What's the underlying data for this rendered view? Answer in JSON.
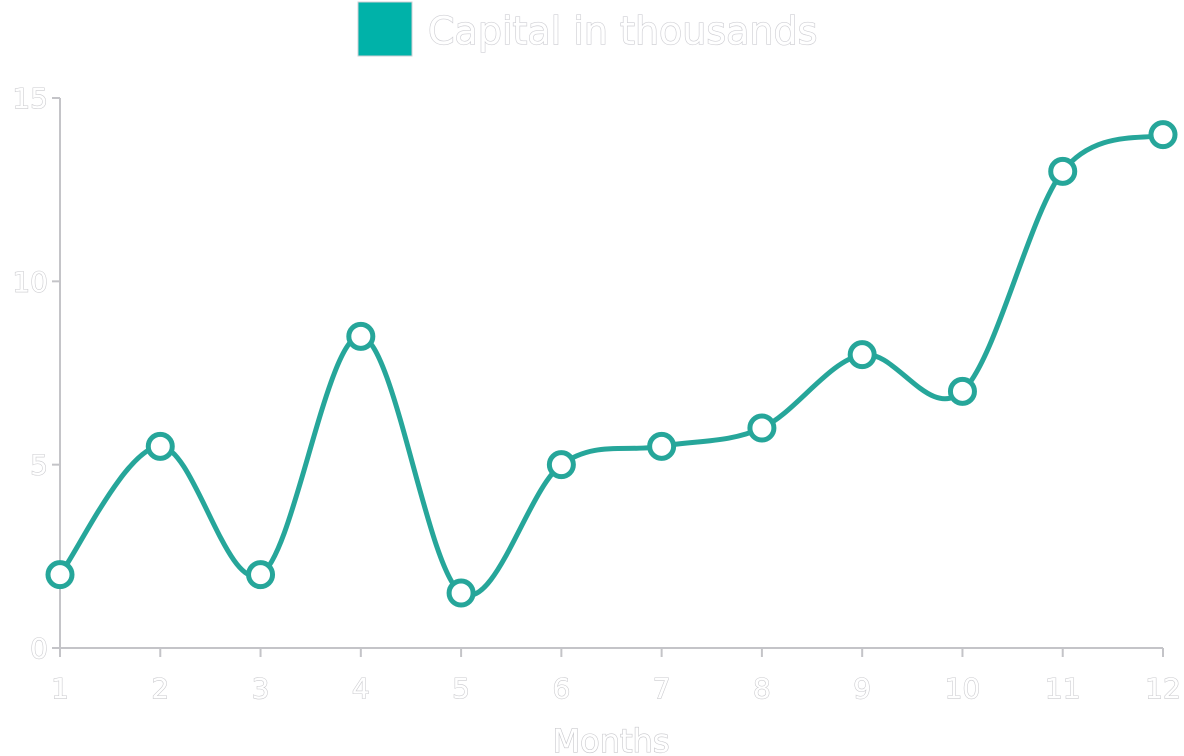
{
  "chart_data": {
    "type": "line",
    "x": [
      1,
      2,
      3,
      4,
      5,
      6,
      7,
      8,
      9,
      10,
      11,
      12
    ],
    "series": [
      {
        "name": "Capital in thousands",
        "values": [
          2,
          5.5,
          2,
          8.5,
          1.5,
          5,
          5.5,
          6,
          8,
          7,
          13,
          14
        ],
        "color": "#26a69a"
      }
    ],
    "xlabel": "Months",
    "ylabel": "",
    "ylim": [
      0,
      15
    ],
    "yticks": [
      0,
      5,
      10,
      15
    ],
    "xticks": [
      "1",
      "2",
      "3",
      "4",
      "5",
      "6",
      "7",
      "8",
      "9",
      "10",
      "11",
      "12"
    ],
    "grid": false,
    "legend": "top-center",
    "legend_color": "#00b2a9",
    "axis_color": "#c4c4c8"
  }
}
